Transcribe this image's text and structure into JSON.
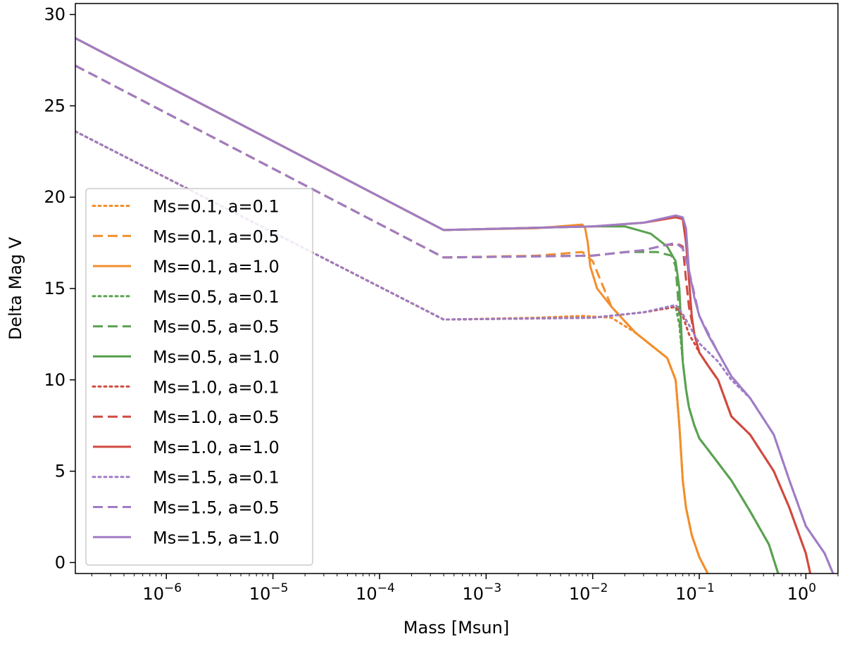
{
  "chart_data": {
    "type": "line",
    "title": "",
    "xlabel": "Mass [Msun]",
    "ylabel": "Delta Mag V",
    "xscale": "log",
    "xlim": [
      1.4e-07,
      2.0
    ],
    "ylim": [
      -0.6,
      30.6
    ],
    "grid": false,
    "legend_position": "left-middle",
    "x_ticks": [
      {
        "value": 1e-06,
        "base": "10",
        "exp": "−6"
      },
      {
        "value": 1e-05,
        "base": "10",
        "exp": "−5"
      },
      {
        "value": 0.0001,
        "base": "10",
        "exp": "−4"
      },
      {
        "value": 0.001,
        "base": "10",
        "exp": "−3"
      },
      {
        "value": 0.01,
        "base": "10",
        "exp": "−2"
      },
      {
        "value": 0.1,
        "base": "10",
        "exp": "−1"
      },
      {
        "value": 1,
        "base": "10",
        "exp": "0"
      }
    ],
    "y_ticks": [
      {
        "value": 0,
        "label": "0"
      },
      {
        "value": 5,
        "label": "5"
      },
      {
        "value": 10,
        "label": "10"
      },
      {
        "value": 15,
        "label": "15"
      },
      {
        "value": 20,
        "label": "20"
      },
      {
        "value": 25,
        "label": "25"
      },
      {
        "value": 30,
        "label": "30"
      }
    ],
    "series": [
      {
        "name": "Ms=0.1, a=0.1",
        "color": "#f28e2b",
        "style": "dotted",
        "x": [
          1.4e-07,
          0.0004,
          0.003,
          0.008,
          0.015,
          0.025,
          0.05,
          0.06,
          0.065,
          0.07,
          0.075,
          0.085,
          0.1,
          0.12
        ],
        "y": [
          23.6,
          13.3,
          13.4,
          13.5,
          13.4,
          12.6,
          11.2,
          10.0,
          7.5,
          4.5,
          3.0,
          1.5,
          0.3,
          -0.6
        ]
      },
      {
        "name": "Ms=0.1, a=0.5",
        "color": "#f28e2b",
        "style": "dashed",
        "x": [
          1.4e-07,
          0.0004,
          0.003,
          0.008,
          0.01,
          0.015,
          0.025,
          0.05,
          0.06,
          0.065,
          0.07,
          0.075,
          0.085,
          0.1,
          0.12
        ],
        "y": [
          27.2,
          16.7,
          16.8,
          17.0,
          16.5,
          14.0,
          12.6,
          11.2,
          10.0,
          7.5,
          4.5,
          3.0,
          1.5,
          0.3,
          -0.6
        ]
      },
      {
        "name": "Ms=0.1, a=1.0",
        "color": "#f28e2b",
        "style": "solid",
        "x": [
          1.4e-07,
          0.0004,
          0.003,
          0.008,
          0.0085,
          0.009,
          0.0095,
          0.011,
          0.015,
          0.025,
          0.05,
          0.06,
          0.065,
          0.07,
          0.075,
          0.085,
          0.1,
          0.12
        ],
        "y": [
          28.7,
          18.2,
          18.3,
          18.5,
          18.3,
          17.5,
          16.2,
          15.0,
          14.0,
          12.6,
          11.2,
          10.0,
          7.5,
          4.5,
          3.0,
          1.5,
          0.3,
          -0.6
        ]
      },
      {
        "name": "Ms=0.5, a=0.1",
        "color": "#59a14f",
        "style": "dotted",
        "x": [
          1.4e-07,
          0.0004,
          0.01,
          0.03,
          0.06,
          0.065,
          0.07,
          0.075,
          0.08,
          0.09,
          0.1,
          0.12,
          0.2,
          0.3,
          0.45,
          0.55
        ],
        "y": [
          23.6,
          13.3,
          13.4,
          13.7,
          14.0,
          13.0,
          11.0,
          9.5,
          8.5,
          7.5,
          6.8,
          6.2,
          4.5,
          2.8,
          1.0,
          -0.6
        ]
      },
      {
        "name": "Ms=0.5, a=0.5",
        "color": "#59a14f",
        "style": "dashed",
        "x": [
          1.4e-07,
          0.0004,
          0.01,
          0.02,
          0.04,
          0.055,
          0.06,
          0.065,
          0.07,
          0.075,
          0.08,
          0.09,
          0.1,
          0.12,
          0.2,
          0.3,
          0.45,
          0.55
        ],
        "y": [
          27.2,
          16.7,
          16.8,
          17.0,
          17.0,
          16.8,
          16.2,
          13.5,
          11.0,
          9.5,
          8.5,
          7.5,
          6.8,
          6.2,
          4.5,
          2.8,
          1.0,
          -0.6
        ]
      },
      {
        "name": "Ms=0.5, a=1.0",
        "color": "#59a14f",
        "style": "solid",
        "x": [
          1.4e-07,
          0.0004,
          0.01,
          0.02,
          0.035,
          0.05,
          0.06,
          0.065,
          0.07,
          0.075,
          0.08,
          0.09,
          0.1,
          0.12,
          0.2,
          0.3,
          0.45,
          0.55
        ],
        "y": [
          28.7,
          18.2,
          18.4,
          18.4,
          18.0,
          17.3,
          16.5,
          15.0,
          11.0,
          9.5,
          8.5,
          7.5,
          6.8,
          6.2,
          4.5,
          2.8,
          1.0,
          -0.6
        ]
      },
      {
        "name": "Ms=1.0, a=0.1",
        "color": "#d1493f",
        "style": "dotted",
        "x": [
          1.4e-07,
          0.0004,
          0.01,
          0.03,
          0.06,
          0.07,
          0.08,
          0.09,
          0.1,
          0.12,
          0.15,
          0.2,
          0.3,
          0.5,
          0.7,
          1.0,
          1.1
        ],
        "y": [
          23.6,
          13.3,
          13.4,
          13.7,
          14.0,
          13.5,
          12.5,
          12.0,
          11.5,
          10.8,
          10.0,
          8.0,
          7.0,
          5.0,
          3.0,
          0.5,
          -0.6
        ]
      },
      {
        "name": "Ms=1.0, a=0.5",
        "color": "#d1493f",
        "style": "dashed",
        "x": [
          1.4e-07,
          0.0004,
          0.01,
          0.03,
          0.05,
          0.065,
          0.07,
          0.075,
          0.08,
          0.09,
          0.1,
          0.12,
          0.15,
          0.2,
          0.3,
          0.5,
          0.7,
          1.0,
          1.1
        ],
        "y": [
          27.2,
          16.7,
          16.8,
          17.1,
          17.4,
          17.4,
          17.3,
          15.5,
          14.0,
          12.5,
          11.5,
          10.8,
          10.0,
          8.0,
          7.0,
          5.0,
          3.0,
          0.5,
          -0.6
        ]
      },
      {
        "name": "Ms=1.0, a=1.0",
        "color": "#d1493f",
        "style": "solid",
        "x": [
          1.4e-07,
          0.0004,
          0.01,
          0.03,
          0.06,
          0.07,
          0.075,
          0.08,
          0.085,
          0.09,
          0.1,
          0.12,
          0.15,
          0.2,
          0.3,
          0.5,
          0.7,
          1.0,
          1.1
        ],
        "y": [
          28.7,
          18.2,
          18.4,
          18.6,
          18.9,
          18.8,
          17.5,
          15.5,
          13.5,
          12.5,
          11.5,
          10.8,
          10.0,
          8.0,
          7.0,
          5.0,
          3.0,
          0.5,
          -0.6
        ]
      },
      {
        "name": "Ms=1.5, a=0.1",
        "color": "#a07cc5",
        "style": "dotted",
        "x": [
          1.4e-07,
          0.0004,
          0.01,
          0.03,
          0.06,
          0.07,
          0.08,
          0.1,
          0.15,
          0.2,
          0.3,
          0.5,
          0.7,
          1.0,
          1.5,
          1.8
        ],
        "y": [
          23.6,
          13.3,
          13.4,
          13.7,
          14.1,
          13.6,
          13.0,
          12.0,
          11.0,
          10.0,
          9.0,
          7.0,
          4.5,
          2.0,
          0.5,
          -0.6
        ]
      },
      {
        "name": "Ms=1.5, a=0.5",
        "color": "#a07cc5",
        "style": "dashed",
        "x": [
          1.4e-07,
          0.0004,
          0.01,
          0.03,
          0.06,
          0.07,
          0.08,
          0.1,
          0.15,
          0.2,
          0.3,
          0.5,
          0.7,
          1.0,
          1.5,
          1.8
        ],
        "y": [
          27.2,
          16.7,
          16.8,
          17.1,
          17.5,
          17.2,
          16.0,
          13.5,
          11.5,
          10.2,
          9.0,
          7.0,
          4.5,
          2.0,
          0.5,
          -0.6
        ]
      },
      {
        "name": "Ms=1.5, a=1.0",
        "color": "#a07cc5",
        "style": "solid",
        "x": [
          1.4e-07,
          0.0004,
          0.01,
          0.03,
          0.06,
          0.07,
          0.075,
          0.08,
          0.09,
          0.1,
          0.12,
          0.15,
          0.2,
          0.3,
          0.5,
          0.7,
          1.0,
          1.5,
          1.8
        ],
        "y": [
          28.7,
          18.2,
          18.4,
          18.6,
          19.0,
          18.9,
          18.3,
          16.0,
          14.5,
          13.5,
          12.5,
          11.5,
          10.2,
          9.0,
          7.0,
          4.5,
          2.0,
          0.5,
          -0.6
        ]
      }
    ]
  }
}
